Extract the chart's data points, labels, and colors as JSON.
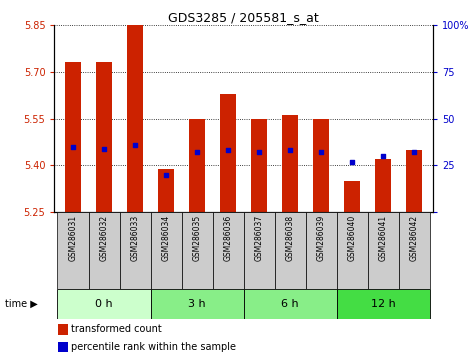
{
  "title": "GDS3285 / 205581_s_at",
  "samples": [
    "GSM286031",
    "GSM286032",
    "GSM286033",
    "GSM286034",
    "GSM286035",
    "GSM286036",
    "GSM286037",
    "GSM286038",
    "GSM286039",
    "GSM286040",
    "GSM286041",
    "GSM286042"
  ],
  "transformed_count": [
    5.73,
    5.73,
    5.85,
    5.39,
    5.55,
    5.63,
    5.55,
    5.56,
    5.55,
    5.35,
    5.42,
    5.45
  ],
  "percentile_rank_pct": [
    35,
    34,
    36,
    20,
    32,
    33,
    32,
    33,
    32,
    27,
    30,
    32
  ],
  "ylim_left": [
    5.25,
    5.85
  ],
  "ylim_right": [
    0,
    100
  ],
  "yticks_left": [
    5.25,
    5.4,
    5.55,
    5.7,
    5.85
  ],
  "yticks_right": [
    0,
    25,
    50,
    75,
    100
  ],
  "bar_color": "#cc2200",
  "dot_color": "#0000cc",
  "groups": [
    {
      "label": "0 h",
      "indices": [
        0,
        1,
        2
      ]
    },
    {
      "label": "3 h",
      "indices": [
        3,
        4,
        5
      ]
    },
    {
      "label": "6 h",
      "indices": [
        6,
        7,
        8
      ]
    },
    {
      "label": "12 h",
      "indices": [
        9,
        10,
        11
      ]
    }
  ],
  "group_bg_colors": [
    "#ccffcc",
    "#88ee88",
    "#88ee88",
    "#44dd44"
  ],
  "sample_bg_color": "#cccccc",
  "time_label": "time",
  "legend_items": [
    "transformed count",
    "percentile rank within the sample"
  ],
  "bar_width": 0.5,
  "base_value": 5.25
}
